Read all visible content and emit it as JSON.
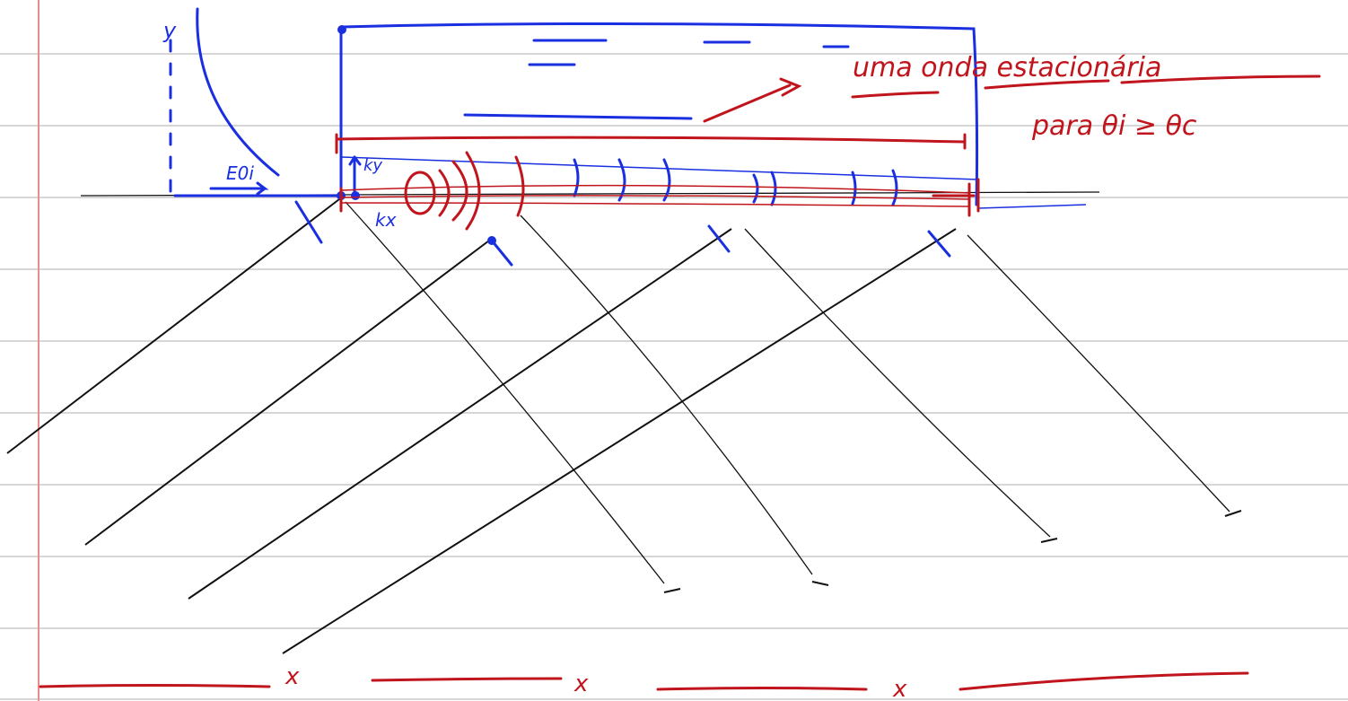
{
  "notes": {
    "axis_label": "y",
    "field_label": "E0i",
    "ky_label": "ky",
    "kx_label": "kx",
    "note_line1": "uma onda estacionária",
    "note_line2": "para θi ≥ θc",
    "x_marks": [
      "x",
      "x",
      "x"
    ]
  }
}
